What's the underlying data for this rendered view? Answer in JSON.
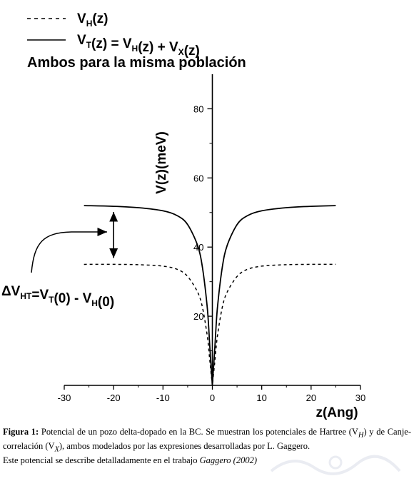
{
  "legend": {
    "dashed": {
      "main": "V",
      "sub": "H",
      "rest": "(z)"
    },
    "solid": {
      "parts": [
        {
          "t": "V",
          "s": "T"
        },
        {
          "t": "(z) = V",
          "s": "H"
        },
        {
          "t": "(z) + V",
          "s": "X"
        },
        {
          "t": "(z)",
          "s": ""
        }
      ]
    }
  },
  "subtitle": "Ambos para la misma población",
  "annotation": {
    "parts": [
      {
        "t": "ΔV",
        "s": "HT"
      },
      {
        "t": "=V",
        "s": "T"
      },
      {
        "t": "(0) - V",
        "s": "H"
      },
      {
        "t": "(0)",
        "s": ""
      }
    ]
  },
  "chart_data": {
    "type": "line",
    "xlabel": "z(Ang)",
    "ylabel": "V(z)(meV)",
    "xlim": [
      -30,
      30
    ],
    "ylim": [
      0,
      90
    ],
    "xticks": [
      -30,
      -20,
      -10,
      0,
      10,
      20,
      30
    ],
    "yticks": [
      20,
      40,
      60,
      80
    ],
    "series": [
      {
        "style": "dashed",
        "legend": "V_H(z)",
        "x": [
          -26,
          -20,
          -15,
          -10,
          -7,
          -5,
          -3,
          -2,
          -1,
          -0.5,
          0,
          0.5,
          1,
          2,
          3,
          5,
          7,
          10,
          15,
          20,
          25
        ],
        "y": [
          35,
          35,
          34.9,
          34.5,
          33.5,
          31.5,
          27,
          22.5,
          14,
          7,
          0,
          7,
          14,
          22.5,
          27,
          31.5,
          33.5,
          34.5,
          34.9,
          35,
          35
        ]
      },
      {
        "style": "solid",
        "legend": "V_T(z) = V_H(z) + V_X(z)",
        "x": [
          -26,
          -20,
          -15,
          -10,
          -7,
          -5,
          -3,
          -2,
          -1,
          -0.5,
          0,
          0.5,
          1,
          2,
          3,
          5,
          7,
          10,
          15,
          20,
          25
        ],
        "y": [
          52,
          51.8,
          51.4,
          50.5,
          49,
          46.5,
          40.5,
          34,
          22,
          11,
          0,
          11,
          22,
          34,
          40.5,
          46.5,
          49,
          50.5,
          51.4,
          51.8,
          52
        ]
      }
    ],
    "delta_marker": {
      "x": -20,
      "y_top": 52,
      "y_bottom": 35
    }
  },
  "caption": {
    "label": "Figura 1:",
    "text1": "Potencial de un pozo delta-dopado en la BC. Se muestran los potenciales de Hartree (V",
    "sub1": "H",
    "text2": ") y de Canje-correlación (V",
    "sub2": "X",
    "text3": "), ambos modelados por las expresiones desarrolladas por L. Gaggero.",
    "line2_pre": "Este potencial se describe detalladamente en el trabajo ",
    "line2_ref": "Gaggero (2002)"
  }
}
